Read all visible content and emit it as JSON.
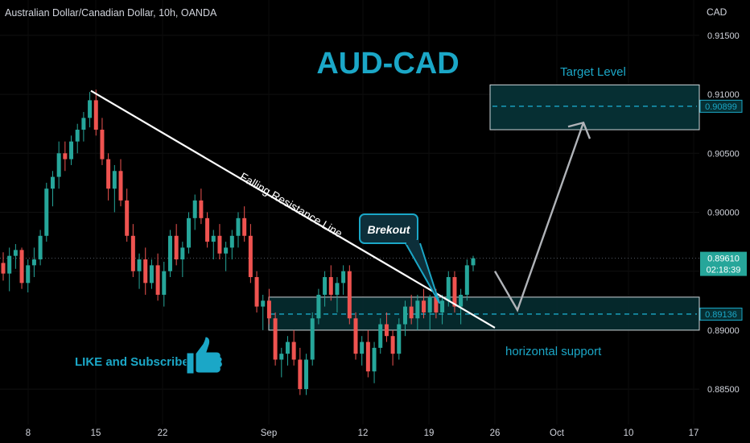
{
  "header": {
    "symbol_line": "Australian Dollar/Canadian Dollar, 10h, OANDA",
    "currency": "CAD"
  },
  "title": "AUD-CAD",
  "colors": {
    "bull": "#26a69a",
    "bear": "#ef5350",
    "accent": "#1ba7c7",
    "box_fill": "#062f33"
  },
  "annotations": {
    "falling_line_label": "Falling Resistance Line",
    "breakout_label": "Brekout",
    "target_label": "Target Level",
    "support_label": "horizontal support",
    "like_label": "LIKE and Subscribe",
    "like_icon": "thumbs-up-icon"
  },
  "price_labels": {
    "current": "0.89610",
    "countdown": "02:18:39",
    "target": "0.90899",
    "support": "0.89136"
  },
  "chart_data": {
    "type": "candlestick",
    "x_ticks": [
      "8",
      "15",
      "22",
      "Sep",
      "12",
      "19",
      "26",
      "Oct",
      "10",
      "17"
    ],
    "y_ticks": [
      "0.91500",
      "0.91000",
      "0.90500",
      "0.90000",
      "0.89500",
      "0.89000",
      "0.88500"
    ],
    "ylim": [
      0.882,
      0.918
    ],
    "current_price": 0.8961,
    "target_level": 0.90899,
    "target_zone": [
      0.907,
      0.9108
    ],
    "support_level": 0.89136,
    "support_zone": [
      0.89,
      0.8928
    ],
    "falling_resistance_line": {
      "start": [
        "15",
        0.9103
      ],
      "end": [
        "26",
        0.8902
      ]
    },
    "projection_path": [
      [
        "26",
        0.895
      ],
      [
        "26+",
        0.8917
      ],
      [
        "Oct-",
        0.9076
      ]
    ],
    "candle_series": [
      [
        0.8957,
        0.8966,
        0.8942,
        0.8948
      ],
      [
        0.8948,
        0.897,
        0.8933,
        0.8963
      ],
      [
        0.8963,
        0.8973,
        0.8952,
        0.8968
      ],
      [
        0.8968,
        0.897,
        0.8935,
        0.894
      ],
      [
        0.894,
        0.896,
        0.8932,
        0.8955
      ],
      [
        0.8955,
        0.897,
        0.8945,
        0.896
      ],
      [
        0.896,
        0.8985,
        0.8955,
        0.898
      ],
      [
        0.898,
        0.9025,
        0.8975,
        0.902
      ],
      [
        0.902,
        0.9035,
        0.9005,
        0.903
      ],
      [
        0.903,
        0.906,
        0.902,
        0.905
      ],
      [
        0.905,
        0.906,
        0.9035,
        0.9045
      ],
      [
        0.9045,
        0.9065,
        0.904,
        0.906
      ],
      [
        0.906,
        0.9075,
        0.905,
        0.907
      ],
      [
        0.907,
        0.9085,
        0.906,
        0.908
      ],
      [
        0.908,
        0.9102,
        0.9072,
        0.9095
      ],
      [
        0.9095,
        0.9104,
        0.9065,
        0.907
      ],
      [
        0.907,
        0.908,
        0.904,
        0.9045
      ],
      [
        0.9045,
        0.905,
        0.901,
        0.902
      ],
      [
        0.902,
        0.904,
        0.9,
        0.9035
      ],
      [
        0.9035,
        0.9045,
        0.9005,
        0.901
      ],
      [
        0.901,
        0.902,
        0.8975,
        0.898
      ],
      [
        0.898,
        0.899,
        0.8945,
        0.895
      ],
      [
        0.895,
        0.8965,
        0.8935,
        0.896
      ],
      [
        0.896,
        0.897,
        0.893,
        0.894
      ],
      [
        0.894,
        0.896,
        0.8935,
        0.8955
      ],
      [
        0.8955,
        0.8965,
        0.8925,
        0.893
      ],
      [
        0.893,
        0.8958,
        0.892,
        0.895
      ],
      [
        0.895,
        0.8985,
        0.8945,
        0.898
      ],
      [
        0.898,
        0.899,
        0.8955,
        0.896
      ],
      [
        0.896,
        0.8975,
        0.8945,
        0.897
      ],
      [
        0.897,
        0.9,
        0.8965,
        0.8995
      ],
      [
        0.8995,
        0.9015,
        0.8985,
        0.901
      ],
      [
        0.901,
        0.902,
        0.899,
        0.8995
      ],
      [
        0.8995,
        0.9,
        0.897,
        0.8975
      ],
      [
        0.8975,
        0.8985,
        0.896,
        0.898
      ],
      [
        0.898,
        0.899,
        0.896,
        0.8965
      ],
      [
        0.8965,
        0.8975,
        0.895,
        0.897
      ],
      [
        0.897,
        0.8985,
        0.896,
        0.898
      ],
      [
        0.898,
        0.9,
        0.897,
        0.8995
      ],
      [
        0.8995,
        0.9005,
        0.8975,
        0.898
      ],
      [
        0.898,
        0.899,
        0.894,
        0.8945
      ],
      [
        0.8945,
        0.895,
        0.8915,
        0.892
      ],
      [
        0.892,
        0.893,
        0.89,
        0.8925
      ],
      [
        0.8925,
        0.8935,
        0.8905,
        0.891
      ],
      [
        0.891,
        0.8915,
        0.887,
        0.8875
      ],
      [
        0.8875,
        0.8885,
        0.886,
        0.888
      ],
      [
        0.888,
        0.8895,
        0.887,
        0.889
      ],
      [
        0.889,
        0.89,
        0.887,
        0.8875
      ],
      [
        0.8875,
        0.8885,
        0.8845,
        0.885
      ],
      [
        0.885,
        0.888,
        0.8845,
        0.8875
      ],
      [
        0.8875,
        0.8915,
        0.887,
        0.891
      ],
      [
        0.891,
        0.8935,
        0.8905,
        0.893
      ],
      [
        0.893,
        0.895,
        0.892,
        0.8945
      ],
      [
        0.8945,
        0.8955,
        0.8925,
        0.893
      ],
      [
        0.893,
        0.8945,
        0.8915,
        0.894
      ],
      [
        0.894,
        0.8955,
        0.893,
        0.895
      ],
      [
        0.895,
        0.8955,
        0.8905,
        0.891
      ],
      [
        0.891,
        0.8915,
        0.8875,
        0.888
      ],
      [
        0.888,
        0.8895,
        0.887,
        0.889
      ],
      [
        0.889,
        0.89,
        0.886,
        0.8865
      ],
      [
        0.8865,
        0.889,
        0.8855,
        0.8885
      ],
      [
        0.8885,
        0.891,
        0.888,
        0.8905
      ],
      [
        0.8905,
        0.8915,
        0.889,
        0.8895
      ],
      [
        0.8895,
        0.89,
        0.887,
        0.888
      ],
      [
        0.888,
        0.891,
        0.8875,
        0.8905
      ],
      [
        0.8905,
        0.8925,
        0.8895,
        0.892
      ],
      [
        0.892,
        0.893,
        0.8905,
        0.891
      ],
      [
        0.891,
        0.893,
        0.89,
        0.8925
      ],
      [
        0.8925,
        0.8935,
        0.891,
        0.8915
      ],
      [
        0.8915,
        0.893,
        0.89,
        0.8928
      ],
      [
        0.8928,
        0.8935,
        0.891,
        0.8915
      ],
      [
        0.8915,
        0.893,
        0.8905,
        0.8925
      ],
      [
        0.8925,
        0.895,
        0.892,
        0.8945
      ],
      [
        0.8945,
        0.895,
        0.8915,
        0.892
      ],
      [
        0.892,
        0.8935,
        0.8905,
        0.893
      ],
      [
        0.893,
        0.896,
        0.8925,
        0.8955
      ],
      [
        0.8955,
        0.8963,
        0.895,
        0.8961
      ]
    ]
  }
}
